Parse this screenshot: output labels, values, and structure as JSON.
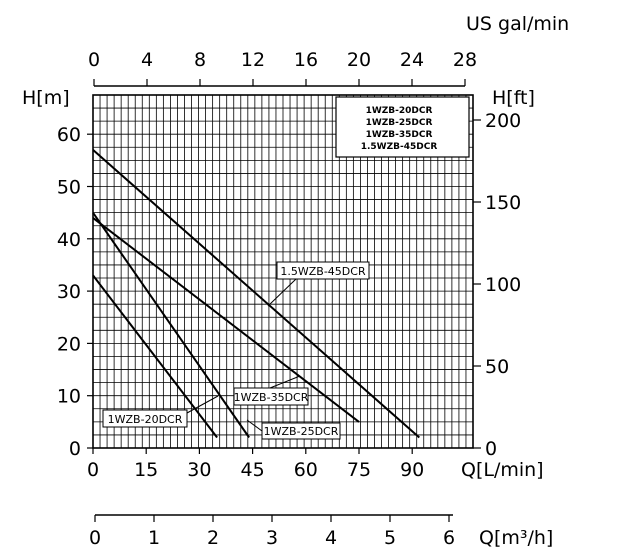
{
  "chart_data": {
    "type": "line",
    "title": "",
    "xlabel": "Q[L/min]",
    "ylabel": "H[m]",
    "secondary_ylabel": "H[ft]",
    "top_axis_label": "US gal/min",
    "bottom_axis2_label": "Q[m³/h]",
    "xlim": [
      0,
      100
    ],
    "ylim": [
      0,
      65
    ],
    "grid": true,
    "x_ticks": [
      0,
      15,
      30,
      45,
      60,
      75,
      90
    ],
    "y_ticks": [
      0,
      10,
      20,
      30,
      40,
      50,
      60
    ],
    "top_ticks": [
      0,
      4,
      8,
      12,
      16,
      20,
      24,
      28
    ],
    "ft_ticks": [
      0,
      50,
      100,
      150,
      200
    ],
    "m3h_ticks": [
      0,
      1,
      2,
      3,
      4,
      5,
      6
    ],
    "legend_position": "top-right",
    "legend": [
      "1WZB-20DCR",
      "1WZB-25DCR",
      "1WZB-35DCR",
      "1.5WZB-45DCR"
    ],
    "series": [
      {
        "name": "1WZB-20DCR",
        "points": [
          [
            0,
            33
          ],
          [
            35,
            2
          ]
        ]
      },
      {
        "name": "1WZB-25DCR",
        "points": [
          [
            0,
            45
          ],
          [
            44,
            2
          ]
        ]
      },
      {
        "name": "1WZB-35DCR",
        "points": [
          [
            0,
            44
          ],
          [
            75,
            5
          ]
        ]
      },
      {
        "name": "1.5WZB-45DCR",
        "points": [
          [
            0,
            57
          ],
          [
            92,
            2
          ]
        ]
      }
    ],
    "annotations": [
      {
        "text": "1WZB-20DCR",
        "series": "1WZB-20DCR"
      },
      {
        "text": "1WZB-25DCR",
        "series": "1WZB-25DCR"
      },
      {
        "text": "1WZB-35DCR",
        "series": "1WZB-35DCR"
      },
      {
        "text": "1.5WZB-45DCR",
        "series": "1.5WZB-45DCR"
      }
    ]
  }
}
